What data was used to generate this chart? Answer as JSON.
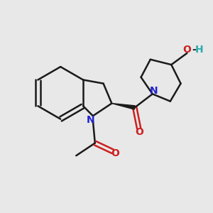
{
  "background_color": "#e8e8e8",
  "bond_color": "#1a1a1a",
  "N_color": "#2222cc",
  "O_color": "#cc2020",
  "H_color": "#2aabab",
  "line_width": 1.8,
  "figsize": [
    3.0,
    3.0
  ],
  "dpi": 100,
  "xlim": [
    0,
    10
  ],
  "ylim": [
    0,
    10
  ]
}
